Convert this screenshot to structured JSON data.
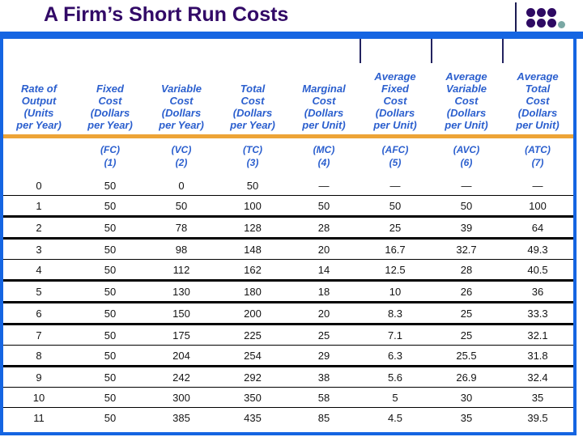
{
  "slide": {
    "title": "A Firm’s Short Run Costs",
    "accent_colors": {
      "title_purple": "#320a67",
      "bar_blue": "#1565e2",
      "header_blue": "#2b5fce",
      "divider_orange": "#eda437",
      "logo_dot_purple": "#2e0a63",
      "logo_dot_teal": "#7aa8a4"
    }
  },
  "table": {
    "column_headers": [
      "Rate of\nOutput\n(Units\nper Year)",
      "Fixed\nCost\n(Dollars\nper Year)",
      "Variable\nCost\n(Dollars\nper Year)",
      "Total\nCost\n(Dollars\nper Year)",
      "Marginal\nCost\n(Dollars\nper Unit)",
      "Average\nFixed\nCost\n(Dollars\nper Unit)",
      "Average\nVariable\nCost\n(Dollars\nper Unit)",
      "Average\nTotal\nCost\n(Dollars\nper Unit)"
    ],
    "column_codes": [
      "",
      "(FC)\n(1)",
      "(VC)\n(2)",
      "(TC)\n(3)",
      "(MC)\n(4)",
      "(AFC)\n(5)",
      "(AVC)\n(6)",
      "(ATC)\n(7)"
    ],
    "rows": [
      {
        "cells": [
          "0",
          "50",
          "0",
          "50",
          "—",
          "—",
          "—",
          "—"
        ],
        "separator": "thin"
      },
      {
        "cells": [
          "1",
          "50",
          "50",
          "100",
          "50",
          "50",
          "50",
          "100"
        ],
        "separator": "thick"
      },
      {
        "cells": [
          "2",
          "50",
          "78",
          "128",
          "28",
          "25",
          "39",
          "64"
        ],
        "separator": "thick"
      },
      {
        "cells": [
          "3",
          "50",
          "98",
          "148",
          "20",
          "16.7",
          "32.7",
          "49.3"
        ],
        "separator": "thin"
      },
      {
        "cells": [
          "4",
          "50",
          "112",
          "162",
          "14",
          "12.5",
          "28",
          "40.5"
        ],
        "separator": "thick"
      },
      {
        "cells": [
          "5",
          "50",
          "130",
          "180",
          "18",
          "10",
          "26",
          "36"
        ],
        "separator": "thick"
      },
      {
        "cells": [
          "6",
          "50",
          "150",
          "200",
          "20",
          "8.3",
          "25",
          "33.3"
        ],
        "separator": "thick"
      },
      {
        "cells": [
          "7",
          "50",
          "175",
          "225",
          "25",
          "7.1",
          "25",
          "32.1"
        ],
        "separator": "thin"
      },
      {
        "cells": [
          "8",
          "50",
          "204",
          "254",
          "29",
          "6.3",
          "25.5",
          "31.8"
        ],
        "separator": "thick"
      },
      {
        "cells": [
          "9",
          "50",
          "242",
          "292",
          "38",
          "5.6",
          "26.9",
          "32.4"
        ],
        "separator": "thin"
      },
      {
        "cells": [
          "10",
          "50",
          "300",
          "350",
          "58",
          "5",
          "30",
          "35"
        ],
        "separator": "thin"
      },
      {
        "cells": [
          "11",
          "50",
          "385",
          "435",
          "85",
          "4.5",
          "35",
          "39.5"
        ],
        "separator": "none"
      }
    ]
  }
}
